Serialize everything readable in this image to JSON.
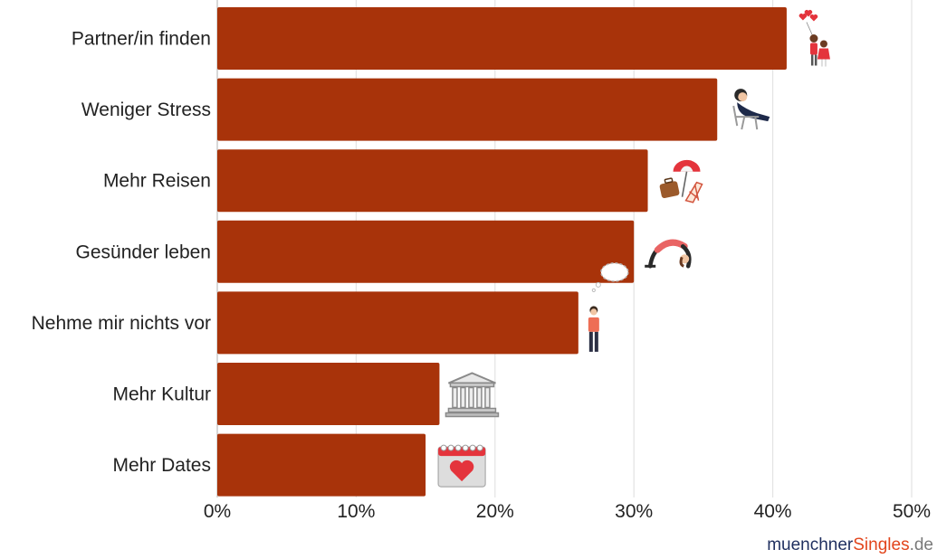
{
  "chart_data": {
    "type": "bar",
    "orientation": "horizontal",
    "categories": [
      "Partner/in finden",
      "Weniger Stress",
      "Mehr Reisen",
      "Gesünder leben",
      "Nehme mir nichts vor",
      "Mehr Kultur",
      "Mehr Dates"
    ],
    "values": [
      41,
      36,
      31,
      30,
      26,
      16,
      15
    ],
    "xlim": [
      0,
      50
    ],
    "ticks": [
      0,
      10,
      20,
      30,
      40,
      50
    ],
    "tick_labels": [
      "0%",
      "10%",
      "20%",
      "30%",
      "40%",
      "50%"
    ],
    "grid": "vertical",
    "bar_color": "#a8330a",
    "icons": [
      "couple-balloons-icon",
      "relaxing-chair-icon",
      "beach-travel-icon",
      "yoga-icon",
      "thinking-person-icon",
      "museum-icon",
      "calendar-heart-icon"
    ]
  },
  "brand": {
    "part1": "muenchner",
    "part2": "Singles",
    "part3": ".de"
  }
}
